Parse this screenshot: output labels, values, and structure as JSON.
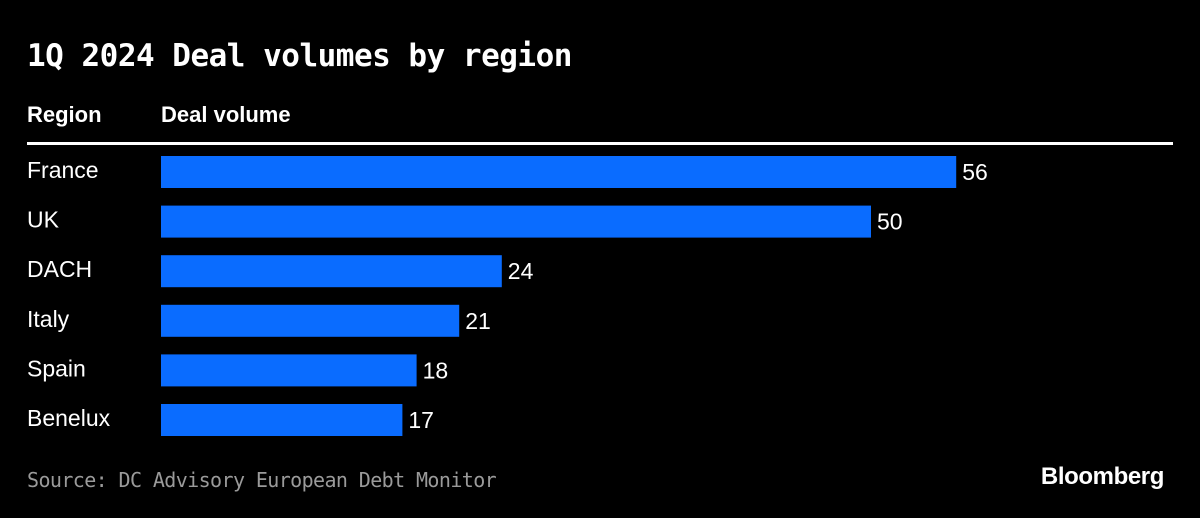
{
  "chart_data": {
    "type": "bar",
    "orientation": "horizontal",
    "title": "1Q 2024 Deal volumes by region",
    "category_header": "Region",
    "value_header": "Deal volume",
    "categories": [
      "France",
      "UK",
      "DACH",
      "Italy",
      "Spain",
      "Benelux"
    ],
    "values": [
      56,
      50,
      24,
      21,
      18,
      17
    ],
    "bar_color": "#0a6cff",
    "grid": false,
    "legend": "none"
  },
  "footer": {
    "source": "Source: DC Advisory European Debt Monitor",
    "brand": "Bloomberg"
  }
}
